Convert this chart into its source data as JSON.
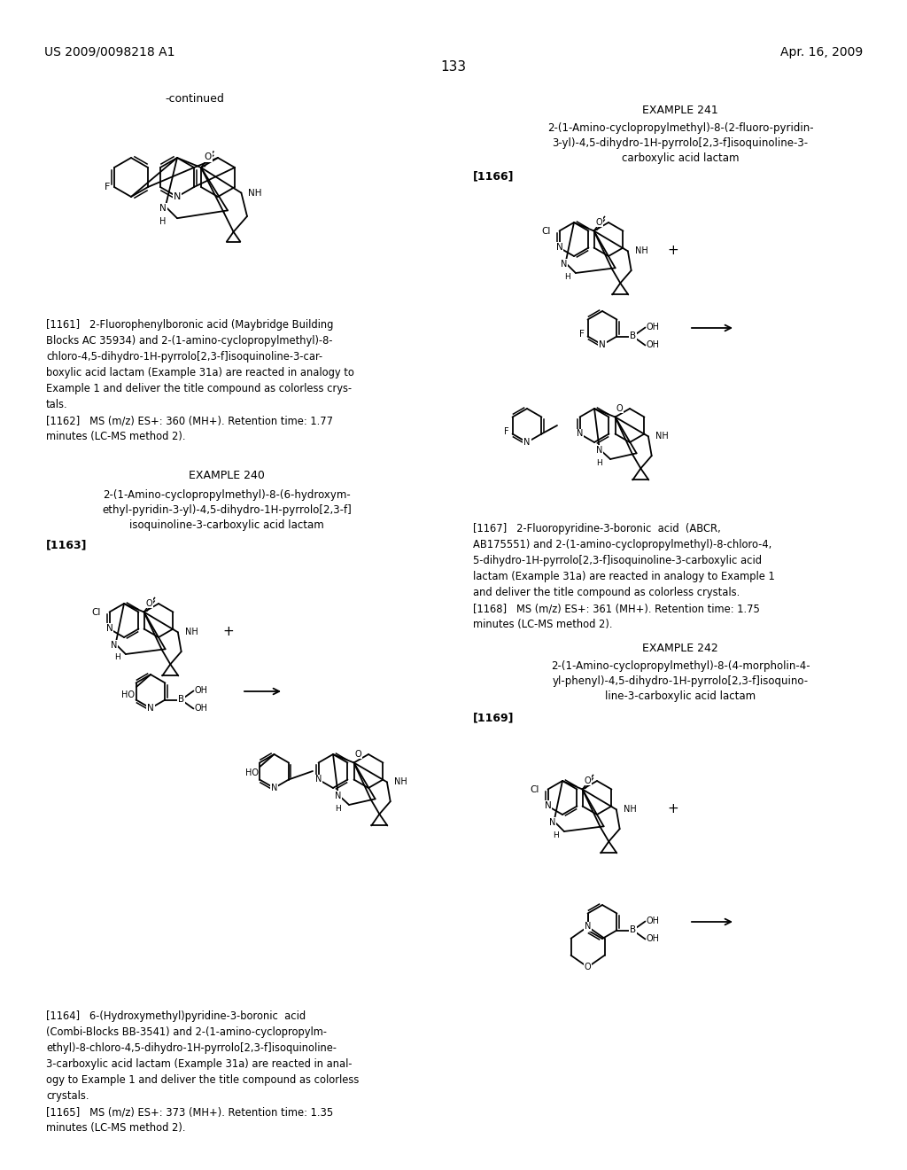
{
  "background_color": "#ffffff",
  "header_left": "US 2009/0098218 A1",
  "header_right": "Apr. 16, 2009",
  "page_number": "133",
  "continued_label": "-continued",
  "example241_header": "EXAMPLE 241",
  "example241_title_lines": [
    "2-(1-Amino-cyclopropylmethyl)-8-(2-fluoro-pyridin-",
    "3-yl)-4,5-dihydro-1H-pyrrolo[2,3-f]isoquinoline-3-",
    "carboxylic acid lactam"
  ],
  "label_1166": "[1166]",
  "text_1167": [
    "[1167]   2-Fluoropyridine-3-boronic  acid  (ABCR,",
    "AB175551) and 2-(1-amino-cyclopropylmethyl)-8-chloro-4,",
    "5-dihydro-1H-pyrrolo[2,3-f]isoquinoline-3-carboxylic acid",
    "lactam (Example 31a) are reacted in analogy to Example 1",
    "and deliver the title compound as colorless crystals.",
    "[1168]   MS (m/z) ES+: 361 (MH+). Retention time: 1.75",
    "minutes (LC-MS method 2)."
  ],
  "example242_header": "EXAMPLE 242",
  "example242_title_lines": [
    "2-(1-Amino-cyclopropylmethyl)-8-(4-morpholin-4-",
    "yl-phenyl)-4,5-dihydro-1H-pyrrolo[2,3-f]isoquino-",
    "line-3-carboxylic acid lactam"
  ],
  "label_1169": "[1169]",
  "example240_header": "EXAMPLE 240",
  "example240_title_lines": [
    "2-(1-Amino-cyclopropylmethyl)-8-(6-hydroxym-",
    "ethyl-pyridin-3-yl)-4,5-dihydro-1H-pyrrolo[2,3-f]",
    "isoquinoline-3-carboxylic acid lactam"
  ],
  "label_1163": "[1163]",
  "text_1161": [
    "[1161]   2-Fluorophenylboronic acid (Maybridge Building",
    "Blocks AC 35934) and 2-(1-amino-cyclopropylmethyl)-8-",
    "chloro-4,5-dihydro-1H-pyrrolo[2,3-f]isoquinoline-3-car-",
    "boxylic acid lactam (Example 31a) are reacted in analogy to",
    "Example 1 and deliver the title compound as colorless crys-",
    "tals.",
    "[1162]   MS (m/z) ES+: 360 (MH+). Retention time: 1.77",
    "minutes (LC-MS method 2)."
  ],
  "text_1164": [
    "[1164]   6-(Hydroxymethyl)pyridine-3-boronic  acid",
    "(Combi-Blocks BB-3541) and 2-(1-amino-cyclopropylm-",
    "ethyl)-8-chloro-4,5-dihydro-1H-pyrrolo[2,3-f]isoquinoline-",
    "3-carboxylic acid lactam (Example 31a) are reacted in anal-",
    "ogy to Example 1 and deliver the title compound as colorless",
    "crystals.",
    "[1165]   MS (m/z) ES+: 373 (MH+). Retention time: 1.35",
    "minutes (LC-MS method 2)."
  ]
}
